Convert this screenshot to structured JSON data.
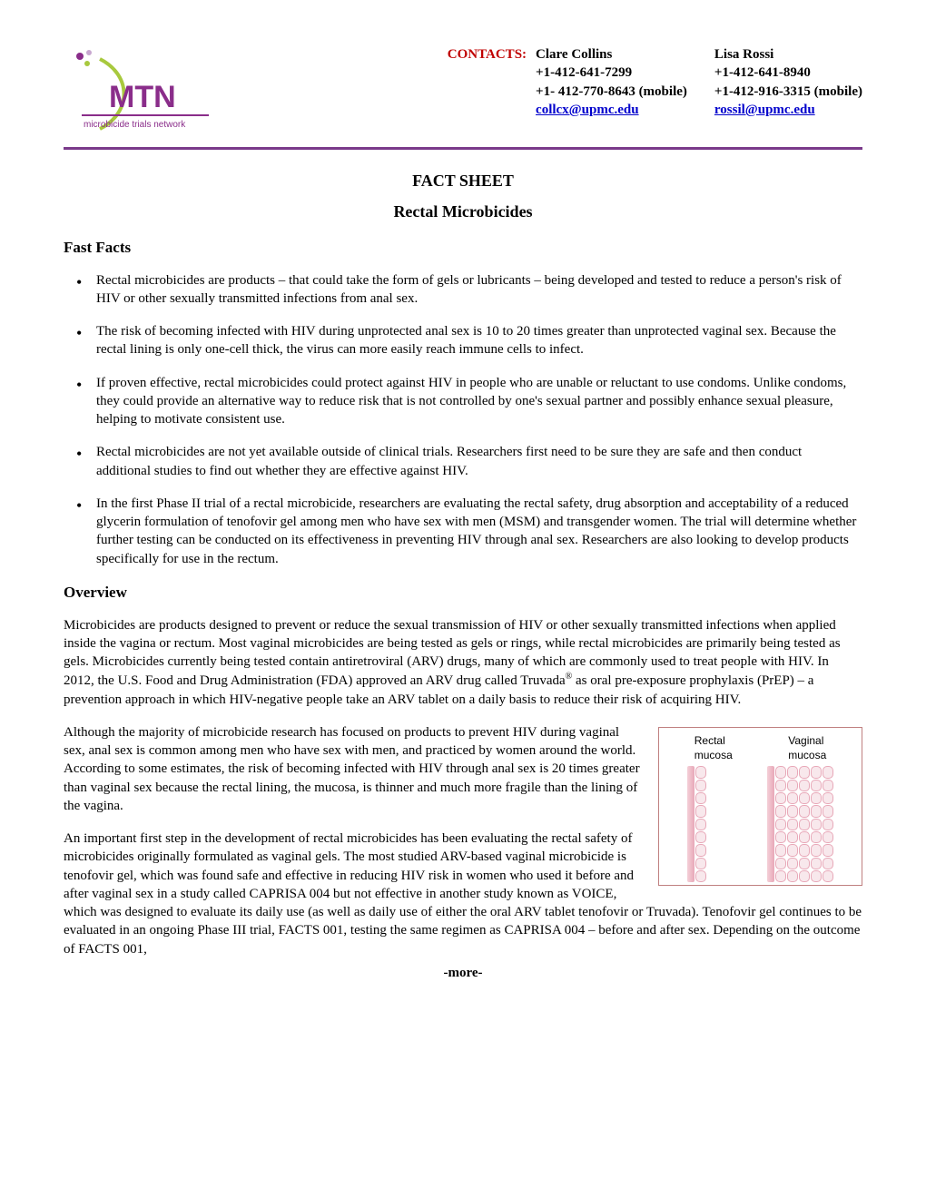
{
  "logo": {
    "acronym": "MTN",
    "subtitle": "microbicide trials network",
    "colors": {
      "text": "#8a2d8a",
      "arc": "#a8c93e",
      "dot1": "#8a2d8a",
      "dot2": "#c8a8d0"
    }
  },
  "contacts": {
    "label": "CONTACTS:",
    "people": [
      {
        "name": "Clare Collins",
        "phone": "+1-412-641-7299",
        "mobile": "+1- 412-770-8643 (mobile)",
        "email": "collcx@upmc.edu"
      },
      {
        "name": "Lisa Rossi",
        "phone": "+1-412-641-8940",
        "mobile": "+1-412-916-3315 (mobile)",
        "email": "rossil@upmc.edu"
      }
    ]
  },
  "titles": {
    "main": "FACT SHEET",
    "sub": "Rectal Microbicides"
  },
  "sections": {
    "fast_facts_heading": "Fast Facts",
    "overview_heading": "Overview"
  },
  "fast_facts": [
    "Rectal microbicides are products – that could take the form of gels or lubricants – being developed and tested to reduce a person's risk of HIV or other sexually transmitted infections from anal sex.",
    "The risk of becoming infected with HIV during unprotected anal sex is 10 to 20 times greater than unprotected vaginal sex. Because the rectal lining is only one-cell thick, the virus can more easily reach immune cells to infect.",
    "If proven effective, rectal microbicides could protect against HIV in people who are unable or reluctant to use condoms. Unlike condoms, they could provide an alternative way to reduce risk that is not controlled by one's sexual partner and possibly enhance sexual pleasure, helping to motivate consistent use.",
    "Rectal microbicides are not yet available outside of clinical trials.  Researchers first need to be sure they are safe and then conduct additional studies to find out whether they are effective against HIV.",
    "In the first Phase II trial of a rectal microbicide, researchers are evaluating the rectal safety, drug absorption and acceptability of a reduced glycerin formulation of tenofovir gel among men who have sex with men (MSM) and transgender women. The trial will determine whether further testing can be conducted on its effectiveness in preventing HIV through anal sex. Researchers are also looking to develop products specifically for use in the rectum."
  ],
  "overview": {
    "p1_a": "Microbicides are products designed to prevent or reduce the sexual transmission of HIV or other sexually transmitted infections when applied inside the vagina or rectum. Most vaginal microbicides are being tested as gels or rings, while rectal microbicides are primarily being tested as gels. Microbicides currently being tested contain antiretroviral (ARV) drugs, many of which are commonly used to treat people with HIV. In 2012, the U.S. Food and Drug Administration (FDA) approved an ARV drug called Truvada",
    "p1_b": " as oral pre-exposure prophylaxis (PrEP) – a prevention approach in which HIV-negative people take an ARV tablet on a daily basis to reduce their risk of acquiring HIV.",
    "p2": "Although the majority of microbicide research has focused on products to prevent HIV during vaginal sex, anal sex is common among men who have sex with men, and practiced by women around the world.  According to some estimates, the risk of becoming infected with HIV through anal sex is 20 times greater than vaginal sex because the rectal lining, the mucosa, is thinner and much more fragile than the lining of the vagina.",
    "p3": "An important first step in the development of rectal microbicides has been evaluating the rectal safety of microbicides originally formulated as vaginal gels. The most studied ARV-based vaginal microbicide is tenofovir gel, which was found safe and effective in reducing HIV risk in women who used it before and after vaginal sex in a study called CAPRISA 004 but not effective in another study known as VOICE, which was designed to evaluate its daily use (as well as daily use of either the oral ARV tablet tenofovir or Truvada). Tenofovir gel continues to be evaluated in an ongoing Phase III trial, FACTS 001, testing the same regimen as CAPRISA 004 – before and after sex. Depending on the outcome of FACTS 001,"
  },
  "diagram": {
    "label_left": "Rectal mucosa",
    "label_right": "Vaginal mucosa",
    "rectal_layers": 1,
    "vaginal_layers": 5,
    "cells_per_layer": 9,
    "cell_border": "#e8a8b8",
    "cell_fill": "#f8e8ec",
    "frame_color": "#c08080"
  },
  "footer": "-more-"
}
